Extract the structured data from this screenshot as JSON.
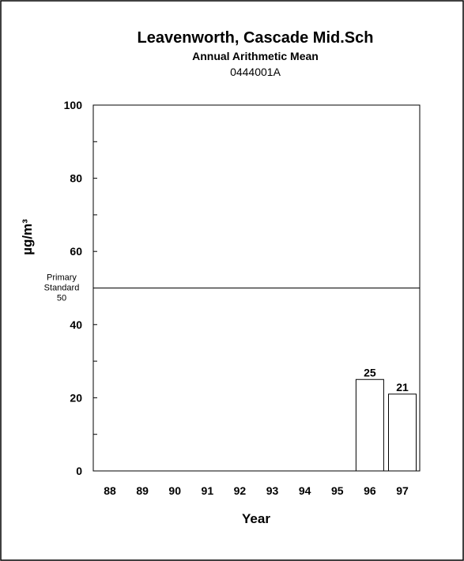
{
  "chart_data": {
    "type": "bar",
    "title": "Leavenworth, Cascade Mid.Sch",
    "subtitle": "Annual Arithmetic Mean",
    "site_code": "0444001A",
    "xlabel": "Year",
    "ylabel": "µg/m³",
    "ylim": [
      0,
      100
    ],
    "yticks": [
      "0",
      "20",
      "40",
      "60",
      "80",
      "100"
    ],
    "categories": [
      "88",
      "89",
      "90",
      "91",
      "92",
      "93",
      "94",
      "95",
      "96",
      "97"
    ],
    "values": [
      null,
      null,
      null,
      null,
      null,
      null,
      null,
      null,
      25,
      21
    ],
    "data_labels": [
      "",
      "",
      "",
      "",
      "",
      "",
      "",
      "",
      "25",
      "21"
    ],
    "reference_line": {
      "value": 50,
      "label_line1": "Primary",
      "label_line2": "Standard",
      "label_line3": "50"
    },
    "grid": false,
    "legend": "none",
    "bar_fill": "#ffffff",
    "stroke_color": "#000000"
  }
}
